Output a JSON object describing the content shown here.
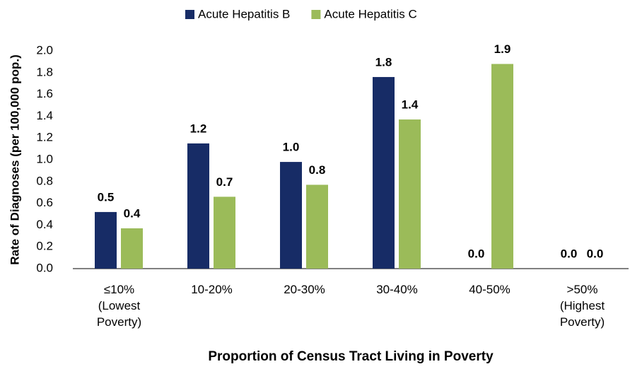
{
  "chart_data": {
    "type": "bar",
    "x_label": "Proportion of Census Tract Living in Poverty",
    "y_label": "Rate of Diagnoses (per 100,000 pop.)",
    "categories": [
      "≤10%\n(Lowest\nPoverty)",
      "10-20%",
      "20-30%",
      "30-40%",
      "40-50%",
      ">50%\n(Highest\nPoverty)"
    ],
    "series": [
      {
        "name": "Acute Hepatitis B",
        "color": "#172c66",
        "values": [
          0.52,
          1.15,
          0.98,
          1.76,
          0,
          0
        ],
        "value_labels": [
          "0.5",
          "1.2",
          "1.0",
          "1.8",
          "0.0",
          "0.0"
        ]
      },
      {
        "name": "Acute Hepatitis C",
        "color": "#9bbb59",
        "values": [
          0.37,
          0.66,
          0.77,
          1.37,
          1.88,
          0
        ],
        "value_labels": [
          "0.4",
          "0.7",
          "0.8",
          "1.4",
          "1.9",
          "0.0"
        ]
      }
    ],
    "ylim": [
      0,
      2
    ],
    "yticks": [
      {
        "value": 0,
        "label": "0.0"
      },
      0.2,
      0.4,
      0.6,
      0.8,
      {
        "value": 1,
        "label": "1.0"
      },
      1.2,
      1.4,
      1.6,
      1.8,
      {
        "value": 2,
        "label": "2.0"
      }
    ],
    "legend": "top"
  }
}
